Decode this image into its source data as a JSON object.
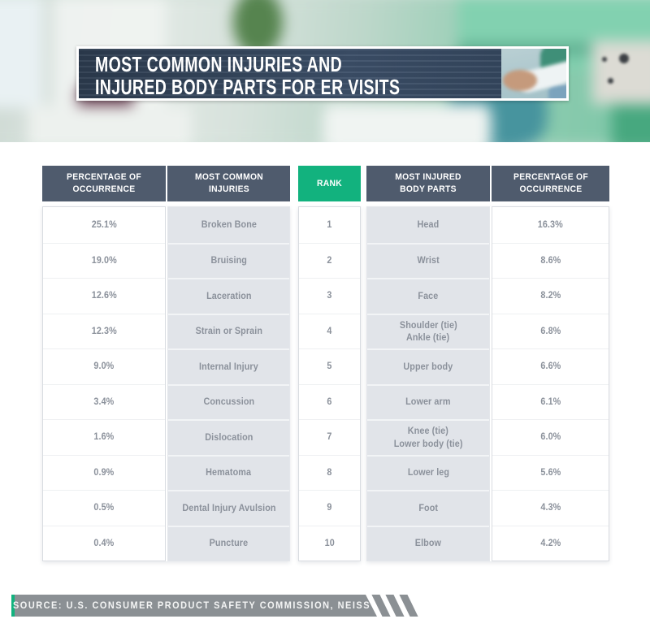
{
  "header": {
    "title_line1": "MOST COMMON INJURIES AND",
    "title_line2": "INJURED BODY PARTS FOR ER VISITS"
  },
  "table": {
    "headers": {
      "left_pct": "PERCENTAGE OF OCCURRENCE",
      "injuries": "MOST COMMON INJURIES",
      "rank": "RANK",
      "body_parts": "MOST INJURED BODY PARTS",
      "right_pct": "PERCENTAGE OF OCCURRENCE"
    },
    "rows": [
      {
        "rank": "1",
        "injury_pct": "25.1%",
        "injury": "Broken Bone",
        "body_part": "Head",
        "body_pct": "16.3%"
      },
      {
        "rank": "2",
        "injury_pct": "19.0%",
        "injury": "Bruising",
        "body_part": "Wrist",
        "body_pct": "8.6%"
      },
      {
        "rank": "3",
        "injury_pct": "12.6%",
        "injury": "Laceration",
        "body_part": "Face",
        "body_pct": "8.2%"
      },
      {
        "rank": "4",
        "injury_pct": "12.3%",
        "injury": "Strain or Sprain",
        "body_part": [
          "Shoulder (tie)",
          "Ankle (tie)"
        ],
        "body_pct": "6.8%"
      },
      {
        "rank": "5",
        "injury_pct": "9.0%",
        "injury": "Internal Injury",
        "body_part": "Upper body",
        "body_pct": "6.6%"
      },
      {
        "rank": "6",
        "injury_pct": "3.4%",
        "injury": "Concussion",
        "body_part": "Lower arm",
        "body_pct": "6.1%"
      },
      {
        "rank": "7",
        "injury_pct": "1.6%",
        "injury": "Dislocation",
        "body_part": [
          "Knee (tie)",
          "Lower body (tie)"
        ],
        "body_pct": "6.0%"
      },
      {
        "rank": "8",
        "injury_pct": "0.9%",
        "injury": "Hematoma",
        "body_part": "Lower leg",
        "body_pct": "5.6%"
      },
      {
        "rank": "9",
        "injury_pct": "0.5%",
        "injury": "Dental Injury Avulsion",
        "body_part": "Foot",
        "body_pct": "4.3%"
      },
      {
        "rank": "10",
        "injury_pct": "0.4%",
        "injury": "Puncture",
        "body_part": "Elbow",
        "body_pct": "4.2%"
      }
    ]
  },
  "footer": {
    "source": "SOURCE: U.S. CONSUMER PRODUCT SAFETY COMMISSION, NEISS"
  },
  "colors": {
    "slate": "#4f5b6d",
    "green": "#12b27e",
    "navy": "#2b3a4d",
    "cell-gray": "#e1e4e9",
    "text-gray": "#8b919b",
    "bar-gray": "#8b9094"
  },
  "chart_data": {
    "type": "table",
    "title": "MOST COMMON INJURIES AND INJURED BODY PARTS FOR ER VISITS",
    "columns": [
      "PERCENTAGE OF OCCURRENCE",
      "MOST COMMON INJURIES",
      "RANK",
      "MOST INJURED BODY PARTS",
      "PERCENTAGE OF OCCURRENCE"
    ],
    "rows": [
      [
        "25.1%",
        "Broken Bone",
        "1",
        "Head",
        "16.3%"
      ],
      [
        "19.0%",
        "Bruising",
        "2",
        "Wrist",
        "8.6%"
      ],
      [
        "12.6%",
        "Laceration",
        "3",
        "Face",
        "8.2%"
      ],
      [
        "12.3%",
        "Strain or Sprain",
        "4",
        "Shoulder (tie) / Ankle (tie)",
        "6.8%"
      ],
      [
        "9.0%",
        "Internal Injury",
        "5",
        "Upper body",
        "6.6%"
      ],
      [
        "3.4%",
        "Concussion",
        "6",
        "Lower arm",
        "6.1%"
      ],
      [
        "1.6%",
        "Dislocation",
        "7",
        "Knee (tie) / Lower body (tie)",
        "6.0%"
      ],
      [
        "0.9%",
        "Hematoma",
        "8",
        "Lower leg",
        "5.6%"
      ],
      [
        "0.5%",
        "Dental Injury Avulsion",
        "9",
        "Foot",
        "4.3%"
      ],
      [
        "0.4%",
        "Puncture",
        "10",
        "Elbow",
        "4.2%"
      ]
    ],
    "source": "SOURCE: U.S. CONSUMER PRODUCT SAFETY COMMISSION, NEISS"
  }
}
